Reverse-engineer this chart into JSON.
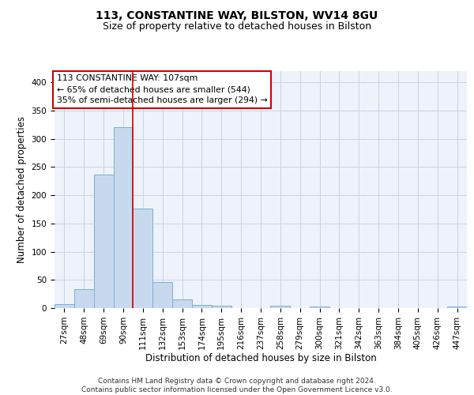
{
  "title": "113, CONSTANTINE WAY, BILSTON, WV14 8GU",
  "subtitle": "Size of property relative to detached houses in Bilston",
  "xlabel": "Distribution of detached houses by size in Bilston",
  "ylabel": "Number of detached properties",
  "categories": [
    "27sqm",
    "48sqm",
    "69sqm",
    "90sqm",
    "111sqm",
    "132sqm",
    "153sqm",
    "174sqm",
    "195sqm",
    "216sqm",
    "237sqm",
    "258sqm",
    "279sqm",
    "300sqm",
    "321sqm",
    "342sqm",
    "363sqm",
    "384sqm",
    "405sqm",
    "426sqm",
    "447sqm"
  ],
  "values": [
    7,
    33,
    237,
    320,
    177,
    46,
    16,
    5,
    4,
    0,
    0,
    4,
    0,
    3,
    0,
    0,
    0,
    0,
    0,
    0,
    3
  ],
  "bar_color": "#c8d9ee",
  "bar_edge_color": "#7aaed6",
  "grid_color": "#c8d4e8",
  "bg_color": "#eef2fa",
  "annotation_text": "113 CONSTANTINE WAY: 107sqm\n← 65% of detached houses are smaller (544)\n35% of semi-detached houses are larger (294) →",
  "annotation_box_color": "#ffffff",
  "annotation_box_edge_color": "#cc0000",
  "vline_color": "#cc0000",
  "vline_pos": 3.5,
  "ylim": [
    0,
    420
  ],
  "yticks": [
    0,
    50,
    100,
    150,
    200,
    250,
    300,
    350,
    400
  ],
  "footnote": "Contains HM Land Registry data © Crown copyright and database right 2024.\nContains public sector information licensed under the Open Government Licence v3.0.",
  "title_fontsize": 10,
  "subtitle_fontsize": 9,
  "tick_fontsize": 7.5,
  "ylabel_fontsize": 8.5,
  "xlabel_fontsize": 8.5,
  "annotation_fontsize": 7.8,
  "footnote_fontsize": 6.5
}
